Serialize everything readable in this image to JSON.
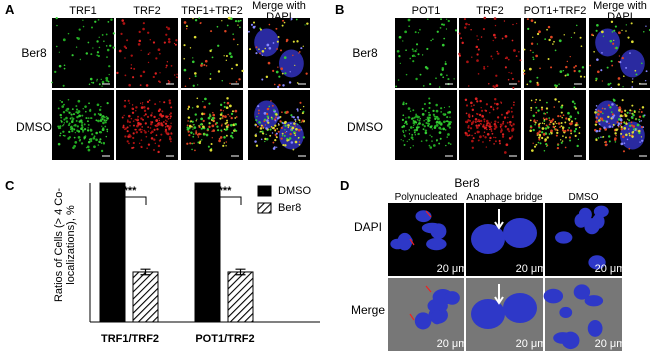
{
  "panels": {
    "A": {
      "label": "A",
      "columns": [
        "TRF1",
        "TRF2",
        "TRF1+TRF2",
        "Merge with DAPI"
      ],
      "rows": [
        "Ber8",
        "DMSO"
      ]
    },
    "B": {
      "label": "B",
      "columns": [
        "POT1",
        "TRF2",
        "POT1+TRF2",
        "Merge with DAPI"
      ],
      "rows": [
        "Ber8",
        "DMSO"
      ]
    },
    "C": {
      "label": "C"
    },
    "D": {
      "label": "D",
      "group": "Ber8",
      "columns": [
        "Polynucleated",
        "Anaphage bridge",
        "DMSO"
      ],
      "rows": [
        "DAPI",
        "Merge"
      ],
      "scale_bar": "20 μm"
    }
  },
  "chart_data": {
    "type": "bar",
    "y_label": "Ratios of Cells (> 4 Co-localizations), %",
    "categories": [
      "TRF1/TRF2",
      "POT1/TRF2"
    ],
    "series": [
      {
        "name": "DMSO",
        "color": "#000000",
        "values": [
          100,
          100
        ]
      },
      {
        "name": "Ber8",
        "color": "#ffffff",
        "pattern": "hatch",
        "values": [
          36,
          36
        ],
        "errors": [
          2,
          2
        ]
      }
    ],
    "annotations": [
      "***",
      "***"
    ],
    "ylim": [
      0,
      100
    ],
    "legend": "upper right"
  }
}
